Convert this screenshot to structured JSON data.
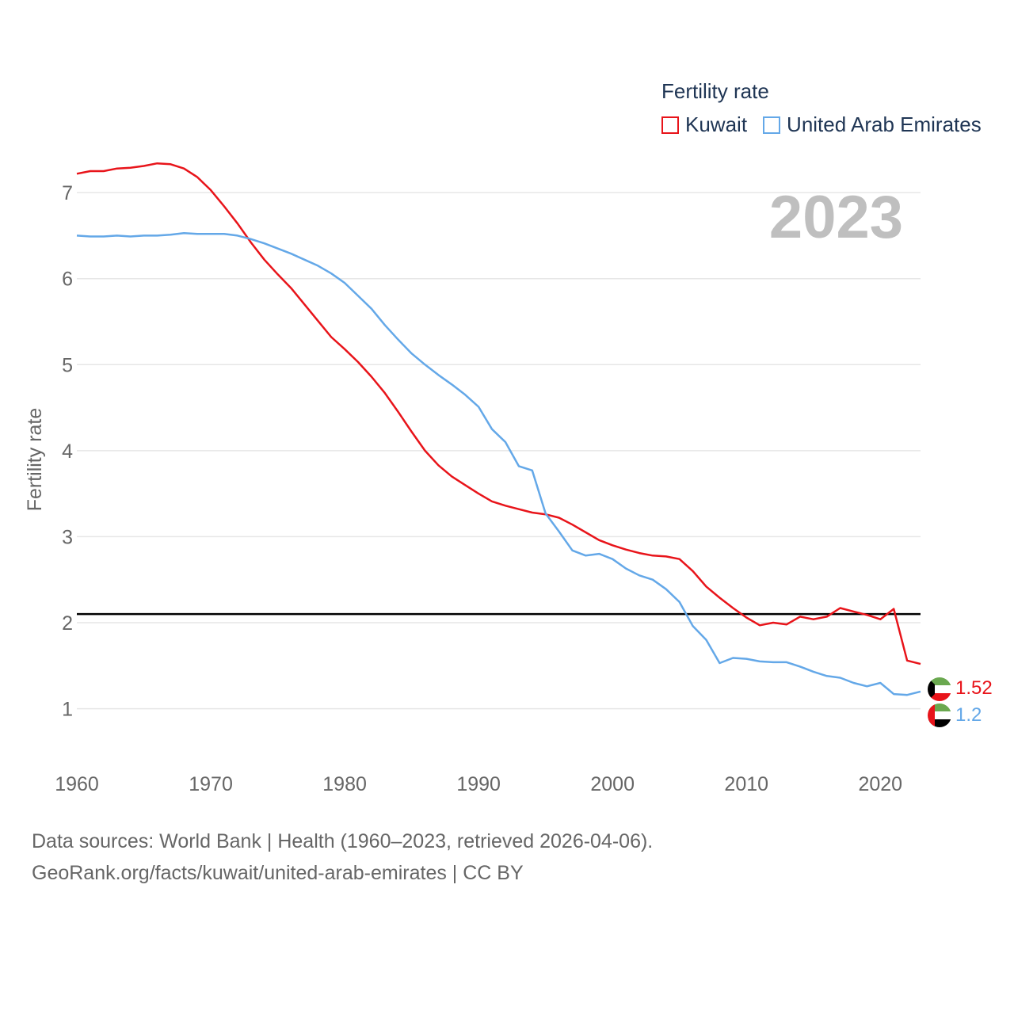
{
  "legend": {
    "title": "Fertility rate",
    "items": [
      {
        "label": "Kuwait",
        "color": "#e8141a"
      },
      {
        "label": "United Arab Emirates",
        "color": "#64a8e8"
      }
    ]
  },
  "source": {
    "line1": "Data sources: World Bank | Health (1960–2023, retrieved 2026-04-06).",
    "line2": "GeoRank.org/facts/kuwait/united-arab-emirates | CC BY"
  },
  "chart_data": {
    "type": "line",
    "title": "",
    "year_label": "2023",
    "xlabel": "",
    "ylabel": "Fertility rate",
    "xlim": [
      1960,
      2023
    ],
    "ylim": [
      0.6,
      7.6
    ],
    "xticks": [
      1960,
      1970,
      1980,
      1990,
      2000,
      2010,
      2020
    ],
    "yticks": [
      1,
      2,
      3,
      4,
      5,
      6,
      7
    ],
    "reference_line": {
      "y": 2.1,
      "color": "#000000"
    },
    "x": [
      1960,
      1961,
      1962,
      1963,
      1964,
      1965,
      1966,
      1967,
      1968,
      1969,
      1970,
      1971,
      1972,
      1973,
      1974,
      1975,
      1976,
      1977,
      1978,
      1979,
      1980,
      1981,
      1982,
      1983,
      1984,
      1985,
      1986,
      1987,
      1988,
      1989,
      1990,
      1991,
      1992,
      1993,
      1994,
      1995,
      1996,
      1997,
      1998,
      1999,
      2000,
      2001,
      2002,
      2003,
      2004,
      2005,
      2006,
      2007,
      2008,
      2009,
      2010,
      2011,
      2012,
      2013,
      2014,
      2015,
      2016,
      2017,
      2018,
      2019,
      2020,
      2021,
      2022,
      2023
    ],
    "series": [
      {
        "name": "Kuwait",
        "color": "#e8141a",
        "end_label": "1.52",
        "values": [
          7.22,
          7.25,
          7.25,
          7.28,
          7.29,
          7.31,
          7.34,
          7.33,
          7.28,
          7.18,
          7.03,
          6.84,
          6.64,
          6.42,
          6.22,
          6.05,
          5.89,
          5.7,
          5.51,
          5.32,
          5.18,
          5.03,
          4.86,
          4.67,
          4.45,
          4.22,
          4.0,
          3.83,
          3.7,
          3.6,
          3.5,
          3.41,
          3.36,
          3.32,
          3.28,
          3.26,
          3.22,
          3.14,
          3.05,
          2.96,
          2.9,
          2.85,
          2.81,
          2.78,
          2.77,
          2.74,
          2.6,
          2.42,
          2.29,
          2.17,
          2.06,
          1.97,
          2.0,
          1.98,
          2.07,
          2.04,
          2.07,
          2.17,
          2.13,
          2.09,
          2.04,
          2.16,
          1.56,
          1.52
        ]
      },
      {
        "name": "United Arab Emirates",
        "color": "#64a8e8",
        "end_label": "1.2",
        "values": [
          6.5,
          6.49,
          6.49,
          6.5,
          6.49,
          6.5,
          6.5,
          6.51,
          6.53,
          6.52,
          6.52,
          6.52,
          6.5,
          6.46,
          6.41,
          6.35,
          6.29,
          6.22,
          6.15,
          6.06,
          5.95,
          5.8,
          5.65,
          5.46,
          5.29,
          5.13,
          5.0,
          4.88,
          4.77,
          4.65,
          4.51,
          4.25,
          4.1,
          3.82,
          3.77,
          3.27,
          3.06,
          2.84,
          2.78,
          2.8,
          2.74,
          2.63,
          2.55,
          2.5,
          2.39,
          2.24,
          1.96,
          1.8,
          1.53,
          1.59,
          1.58,
          1.55,
          1.54,
          1.54,
          1.49,
          1.43,
          1.38,
          1.36,
          1.3,
          1.26,
          1.3,
          1.17,
          1.16,
          1.2
        ]
      }
    ]
  }
}
